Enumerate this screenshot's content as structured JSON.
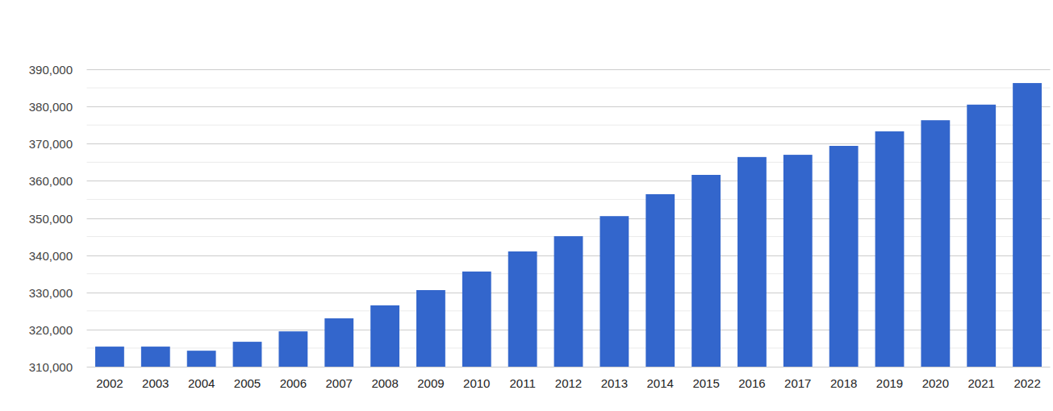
{
  "chart_data": {
    "type": "bar",
    "categories": [
      "2002",
      "2003",
      "2004",
      "2005",
      "2006",
      "2007",
      "2008",
      "2009",
      "2010",
      "2011",
      "2012",
      "2013",
      "2014",
      "2015",
      "2016",
      "2017",
      "2018",
      "2019",
      "2020",
      "2021",
      "2022"
    ],
    "values": [
      315400,
      315400,
      314300,
      316700,
      319500,
      323000,
      326500,
      330600,
      335600,
      341000,
      345100,
      350500,
      356400,
      361600,
      366400,
      367000,
      369400,
      373300,
      376300,
      380500,
      386300
    ],
    "color": "#3366cc",
    "ylim": [
      310000,
      390000
    ],
    "yticks": [
      {
        "value": 310000,
        "label": "310,000"
      },
      {
        "value": 320000,
        "label": "320,000"
      },
      {
        "value": 330000,
        "label": "330,000"
      },
      {
        "value": 340000,
        "label": "340,000"
      },
      {
        "value": 350000,
        "label": "350,000"
      },
      {
        "value": 360000,
        "label": "360,000"
      },
      {
        "value": 370000,
        "label": "370,000"
      },
      {
        "value": 380000,
        "label": "380,000"
      },
      {
        "value": 390000,
        "label": "390,000"
      }
    ],
    "grid": true
  }
}
